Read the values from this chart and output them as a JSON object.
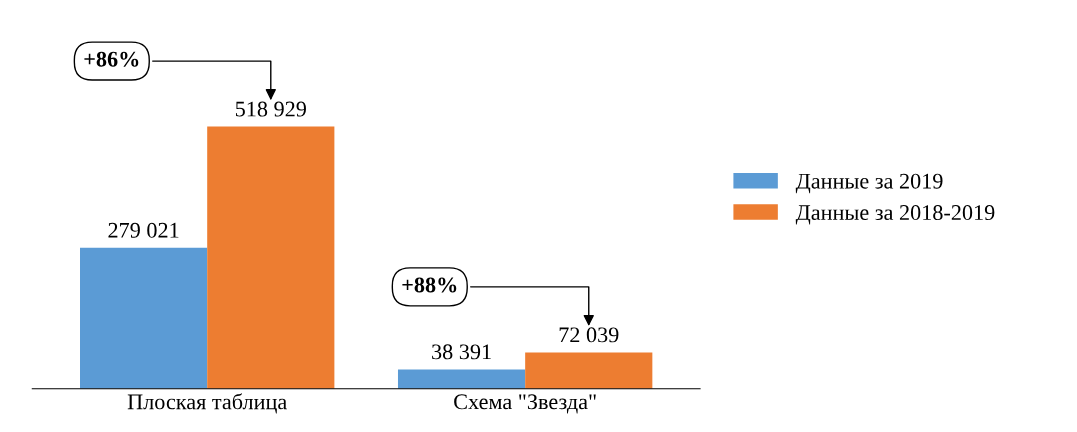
{
  "chart_data": {
    "type": "bar",
    "categories": [
      "Плоская таблица",
      "Схема \"Звезда\""
    ],
    "series": [
      {
        "name": "Данные за 2019",
        "color": "#5b9bd5",
        "values": [
          279021,
          38391
        ],
        "value_labels": [
          "279 021",
          "38 391"
        ]
      },
      {
        "name": "Данные за 2018-2019",
        "color": "#ed7d31",
        "values": [
          518929,
          72039
        ],
        "value_labels": [
          "518 929",
          "72 039"
        ]
      }
    ],
    "annotations": [
      "+86%",
      "+88%"
    ],
    "legend": "right",
    "tick_labels": "x",
    "grid": false
  }
}
